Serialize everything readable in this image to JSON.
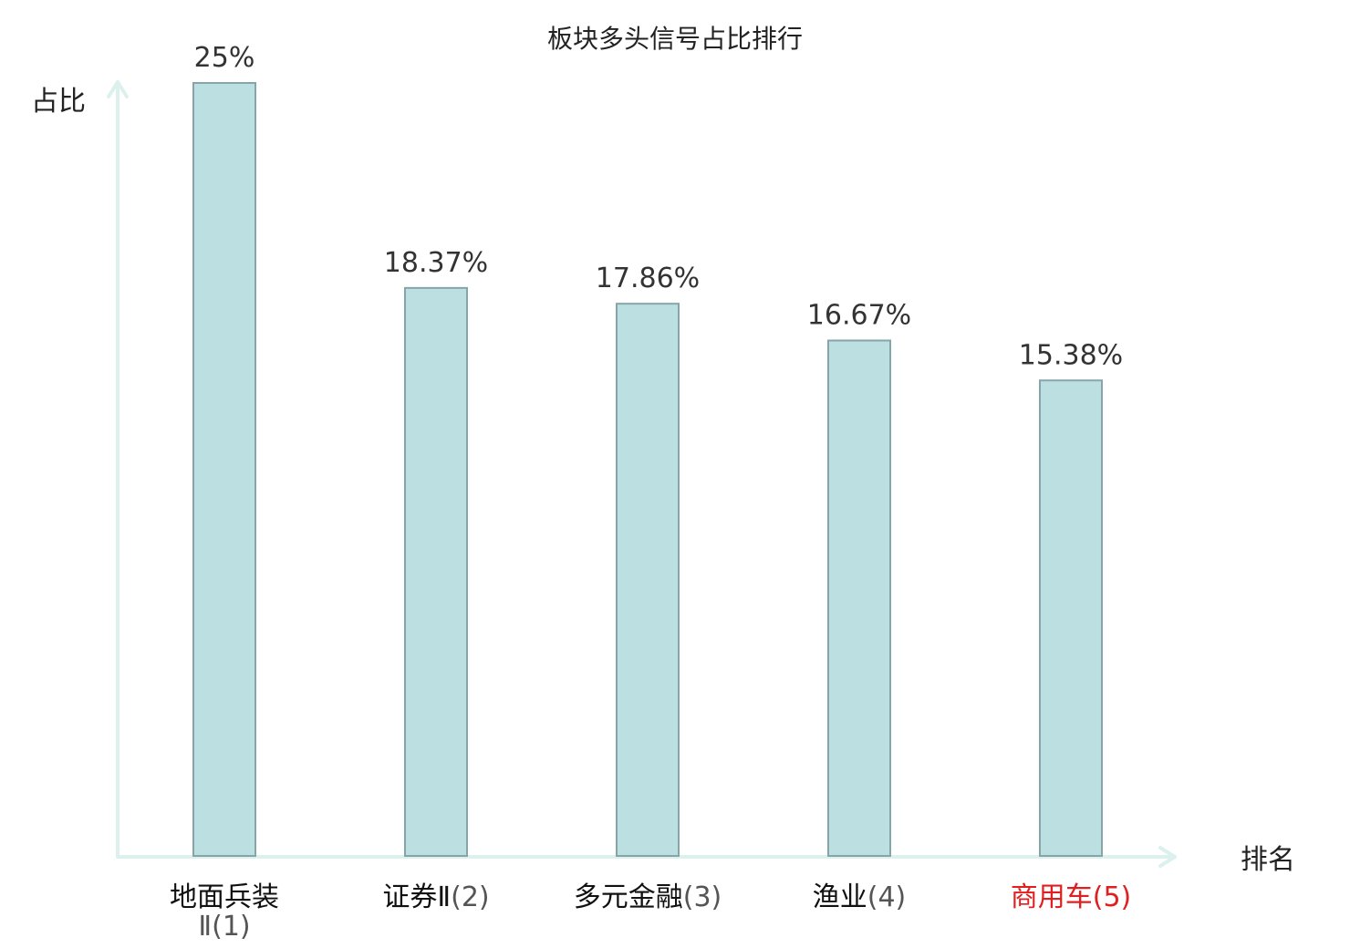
{
  "chart_data": {
    "type": "bar",
    "title": "板块多头信号占比排行",
    "ylabel": "占比",
    "xlabel": "排名",
    "ylim": [
      0,
      25
    ],
    "grid": false,
    "categories": [
      "地面兵装Ⅱ",
      "证券Ⅱ",
      "多元金融",
      "渔业",
      "商用车"
    ],
    "ranks": [
      "(1)",
      "(2)",
      "(3)",
      "(4)",
      "(5)"
    ],
    "values": [
      25,
      18.37,
      17.86,
      16.67,
      15.38
    ],
    "value_labels": [
      "25%",
      "18.37%",
      "17.86%",
      "16.67%",
      "15.38%"
    ],
    "category_colors": [
      "#111111",
      "#111111",
      "#111111",
      "#111111",
      "#e02020"
    ],
    "rank_colors": [
      "#555555",
      "#555555",
      "#555555",
      "#555555",
      "#e02020"
    ]
  },
  "colors": {
    "bar_fill": "#bce0e2",
    "bar_stroke": "#86a5a8",
    "axis": "#dcf1ee",
    "text": "#222222"
  }
}
